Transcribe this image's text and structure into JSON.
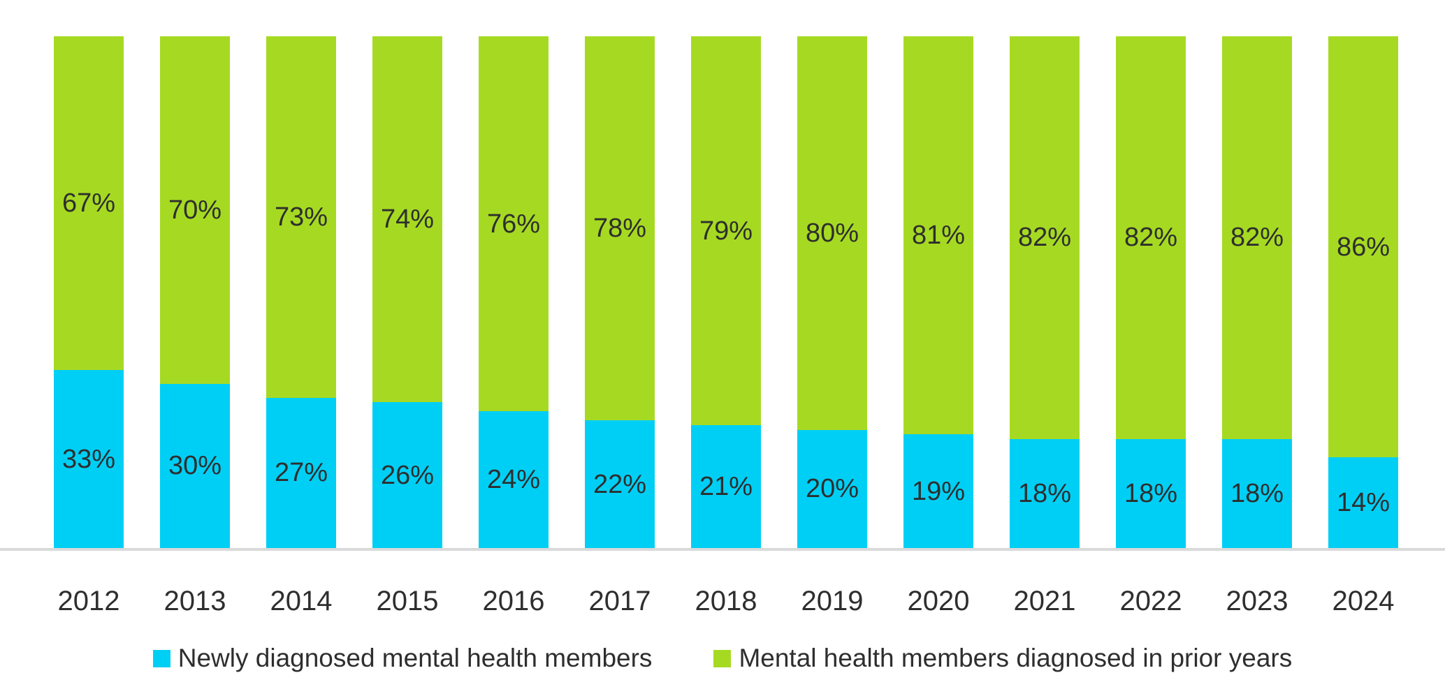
{
  "chart_data": {
    "type": "bar",
    "subtype": "stacked-100-percent",
    "title": "",
    "xlabel": "",
    "ylabel": "",
    "ylim": [
      0,
      100
    ],
    "grid": false,
    "legend_position": "bottom-center",
    "value_suffix": "%",
    "categories": [
      "2012",
      "2013",
      "2014",
      "2015",
      "2016",
      "2017",
      "2018",
      "2019",
      "2020",
      "2021",
      "2022",
      "2023",
      "2024"
    ],
    "series": [
      {
        "name": "Newly diagnosed mental health members",
        "color": "#00CFF5",
        "stack_position": "bottom",
        "values": [
          33,
          30,
          27,
          26,
          24,
          22,
          21,
          20,
          19,
          18,
          18,
          18,
          14
        ]
      },
      {
        "name": "Mental health members diagnosed in prior years",
        "color": "#A6DA22",
        "stack_position": "top",
        "values": [
          67,
          70,
          73,
          74,
          76,
          78,
          79,
          80,
          81,
          82,
          82,
          82,
          86
        ]
      }
    ],
    "data_labels": {
      "visible": true,
      "color": "#2e2e2e",
      "position": "center-of-segment"
    },
    "axis": {
      "x_tick_color": "#2e2e2e",
      "baseline_color": "#d9d9d9"
    }
  }
}
